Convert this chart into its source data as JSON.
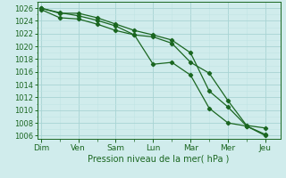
{
  "xlabel": "Pression niveau de la mer( hPa )",
  "bg_color": "#d0ecec",
  "grid_color_major": "#a8d4d4",
  "grid_color_minor": "#c0e4e4",
  "line_color": "#1a6620",
  "ylim": [
    1005.5,
    1027.0
  ],
  "ytick_vals": [
    1006,
    1008,
    1010,
    1012,
    1014,
    1016,
    1018,
    1020,
    1022,
    1024,
    1026
  ],
  "x_labels": [
    "Dim",
    "Ven",
    "Sam",
    "Lun",
    "Mar",
    "Mer",
    "Jeu"
  ],
  "x_tick_pos": [
    0,
    1,
    2,
    3,
    4,
    5,
    6
  ],
  "line1_x": [
    0.0,
    0.5,
    1.0,
    1.5,
    2.0,
    2.5,
    3.0,
    3.5,
    4.0,
    4.5,
    5.0,
    5.5,
    6.0
  ],
  "line1_y": [
    1026.0,
    1025.3,
    1024.8,
    1024.1,
    1023.2,
    1021.8,
    1017.2,
    1017.5,
    1015.5,
    1010.3,
    1008.0,
    1007.5,
    1006.0
  ],
  "line2_x": [
    0.0,
    0.5,
    1.0,
    1.5,
    2.0,
    2.5,
    3.0,
    3.5,
    4.0,
    4.5,
    5.0,
    5.5,
    6.0
  ],
  "line2_y": [
    1025.8,
    1024.5,
    1024.3,
    1023.5,
    1022.5,
    1021.8,
    1021.5,
    1020.5,
    1017.5,
    1015.8,
    1011.5,
    1007.6,
    1007.2
  ],
  "line3_x": [
    0.0,
    0.5,
    1.0,
    1.5,
    2.0,
    2.5,
    3.0,
    3.5,
    4.0,
    4.5,
    5.0,
    5.5,
    6.0
  ],
  "line3_y": [
    1026.0,
    1025.2,
    1025.2,
    1024.5,
    1023.5,
    1022.5,
    1021.8,
    1021.0,
    1019.0,
    1013.0,
    1010.5,
    1007.5,
    1006.2
  ],
  "xlabel_fontsize": 7,
  "xtick_fontsize": 6.5,
  "ytick_fontsize": 6,
  "linewidth": 0.9,
  "markersize": 2.2
}
